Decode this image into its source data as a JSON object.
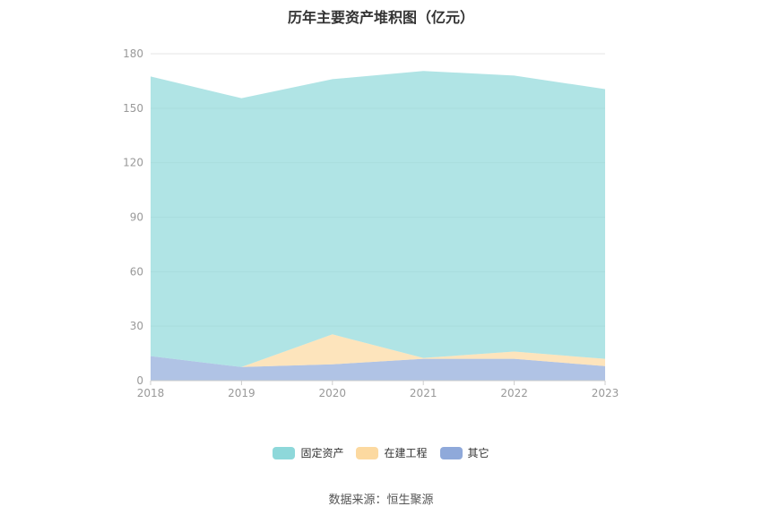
{
  "title": "历年主要资产堆积图（亿元）",
  "source": "数据来源：恒生聚源",
  "chart_data": {
    "type": "area",
    "stacked": true,
    "title": "历年主要资产堆积图（亿元）",
    "categories": [
      "2018",
      "2019",
      "2020",
      "2021",
      "2022",
      "2023"
    ],
    "ylim": [
      0,
      180
    ],
    "yticks": [
      0,
      30,
      60,
      90,
      120,
      150,
      180
    ],
    "grid": true,
    "legend_position": "bottom",
    "series": [
      {
        "name": "其它",
        "color": "#8fa9da",
        "values": [
          13.5,
          7.5,
          9,
          12,
          12,
          8
        ]
      },
      {
        "name": "在建工程",
        "color": "#fcd9a0",
        "values": [
          0,
          0,
          16.5,
          0.5,
          4,
          4
        ]
      },
      {
        "name": "固定资产",
        "color": "#8ed8da",
        "values": [
          154,
          148,
          140.5,
          158,
          152,
          148.5
        ]
      }
    ],
    "legend_order": [
      "固定资产",
      "在建工程",
      "其它"
    ]
  }
}
